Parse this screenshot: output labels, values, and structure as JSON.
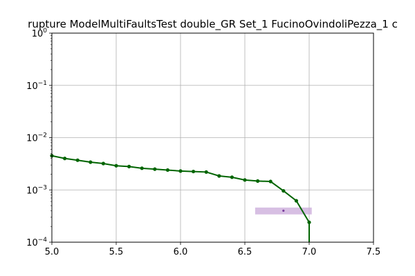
{
  "chart_data": {
    "type": "line",
    "title": "rupture ModelMultiFaultsTest double_GR Set_1 FucinoOvindoliPezza_1 c",
    "xlabel": "",
    "ylabel": "",
    "xlim": [
      5.0,
      7.5
    ],
    "ylim": [
      0.0001,
      1
    ],
    "yscale": "log",
    "grid": true,
    "x_ticks": [
      {
        "value": 5.0,
        "label": "5.0"
      },
      {
        "value": 5.5,
        "label": "5.5"
      },
      {
        "value": 6.0,
        "label": "6.0"
      },
      {
        "value": 6.5,
        "label": "6.5"
      },
      {
        "value": 7.0,
        "label": "7.0"
      },
      {
        "value": 7.5,
        "label": "7.5"
      }
    ],
    "y_ticks": [
      {
        "value": 0.0001,
        "base": "10",
        "exp": "−4"
      },
      {
        "value": 0.001,
        "base": "10",
        "exp": "−3"
      },
      {
        "value": 0.01,
        "base": "10",
        "exp": "−2"
      },
      {
        "value": 0.1,
        "base": "10",
        "exp": "−1"
      },
      {
        "value": 1,
        "base": "10",
        "exp": "0"
      }
    ],
    "series": [
      {
        "color": "#006400",
        "marker": "circle",
        "x": [
          5.0,
          5.1,
          5.2,
          5.3,
          5.4,
          5.5,
          5.6,
          5.7,
          5.8,
          5.9,
          6.0,
          6.1,
          6.2,
          6.3,
          6.4,
          6.5,
          6.6,
          6.7,
          6.8,
          6.9,
          7.0
        ],
        "y": [
          0.0045,
          0.004,
          0.0037,
          0.0034,
          0.0032,
          0.0029,
          0.0028,
          0.0026,
          0.0025,
          0.0024,
          0.0023,
          0.00225,
          0.0022,
          0.00185,
          0.00175,
          0.00155,
          0.00148,
          0.00145,
          0.00096,
          0.00062,
          0.00024
        ]
      }
    ],
    "vertical_drop": {
      "x": 7.0,
      "y_from": 0.00024,
      "y_to": 0.0001,
      "color": "#006400"
    },
    "observation": {
      "x": 6.8,
      "y": 0.0004,
      "x_range": [
        6.58,
        7.02
      ],
      "y_range": [
        0.00034,
        0.00046
      ],
      "color": "#7b3f9e",
      "box_color": "#c9a9d9"
    }
  }
}
